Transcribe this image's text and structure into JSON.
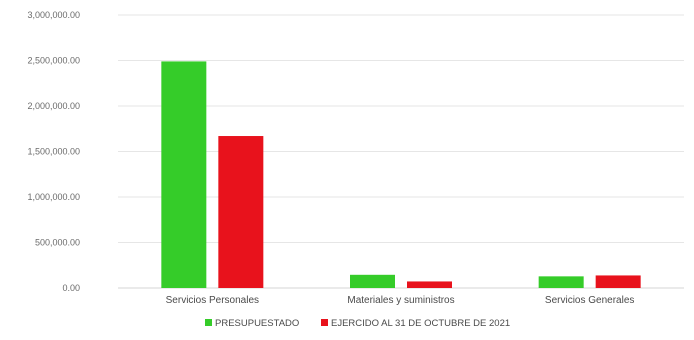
{
  "chart_data": {
    "type": "bar",
    "categories": [
      "Servicios Personales",
      "Materiales y suministros",
      "Servicios Generales"
    ],
    "series": [
      {
        "name": "PRESUPUESTADO",
        "color": "#35cc29",
        "values": [
          2490000,
          145000,
          128000
        ]
      },
      {
        "name": "EJERCIDO AL 31 DE OCTUBRE DE 2021",
        "color": "#e8121c",
        "values": [
          1670000,
          72000,
          138000
        ]
      }
    ],
    "y_ticks": [
      "0.00",
      "500,000.00",
      "1,000,000.00",
      "1,500,000.00",
      "2,000,000.00",
      "2,500,000.00",
      "3,000,000.00"
    ],
    "ylim": [
      0,
      3000000
    ],
    "grid": true,
    "legend_position": "bottom-center"
  }
}
